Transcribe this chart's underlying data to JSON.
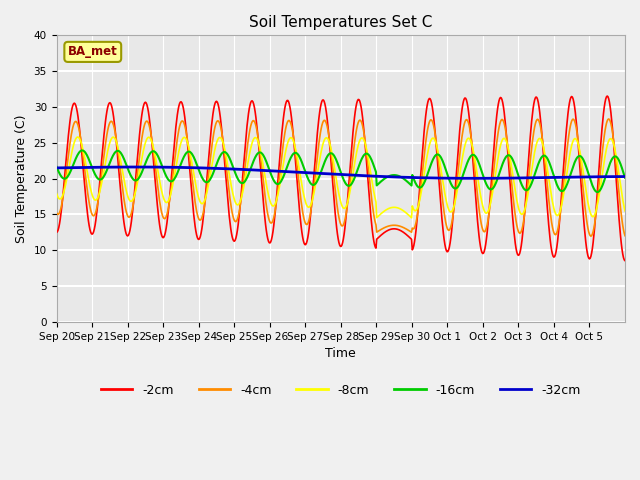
{
  "title": "Soil Temperatures Set C",
  "xlabel": "Time",
  "ylabel": "Soil Temperature (C)",
  "ylim": [
    0,
    40
  ],
  "yticks": [
    0,
    5,
    10,
    15,
    20,
    25,
    30,
    35,
    40
  ],
  "xtick_labels": [
    "Sep 20",
    "Sep 21",
    "Sep 22",
    "Sep 23",
    "Sep 24",
    "Sep 25",
    "Sep 26",
    "Sep 27",
    "Sep 28",
    "Sep 29",
    "Sep 30",
    "Oct 1",
    "Oct 2",
    "Oct 3",
    "Oct 4",
    "Oct 5"
  ],
  "legend_labels": [
    "-2cm",
    "-4cm",
    "-8cm",
    "-16cm",
    "-32cm"
  ],
  "line_colors": [
    "#FF0000",
    "#FF8C00",
    "#FFFF00",
    "#00CC00",
    "#0000CC"
  ],
  "line_widths": [
    1.2,
    1.2,
    1.2,
    1.5,
    2.0
  ],
  "annotation_text": "BA_met",
  "fig_facecolor": "#F0F0F0",
  "ax_facecolor": "#E8E8E8",
  "grid_color": "#FFFFFF"
}
